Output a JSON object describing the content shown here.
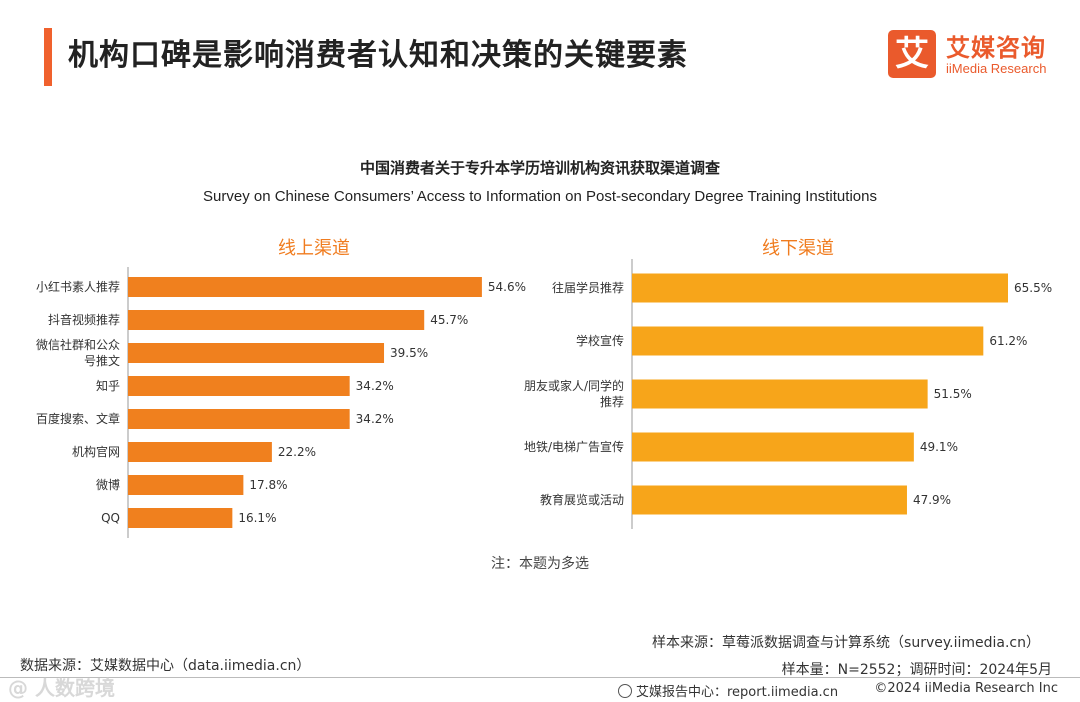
{
  "header": {
    "title": "机构口碑是影响消费者认知和决策的关键要素"
  },
  "logo": {
    "mark": "艾",
    "cn": "艾媒咨询",
    "en": "iiMedia Research"
  },
  "colors": {
    "accent": "#f0612d",
    "online_bar": "#f0801e",
    "offline_bar": "#f7a51a",
    "heading": "#f07c1f"
  },
  "chart_data": [
    {
      "type": "bar",
      "orientation": "horizontal",
      "title": "中国消费者关于专升本学历培训机构资讯获取渠道调查",
      "subtitle": "Survey on Chinese Consumers’ Access to Information on Post-secondary Degree Training Institutions",
      "panel": "线上渠道",
      "categories": [
        "小红书素人推荐",
        "抖音视频推荐",
        "微信社群和公众号推文",
        "知乎",
        "百度搜索、文章",
        "机构官网",
        "微博",
        "QQ"
      ],
      "category_lines": [
        [
          "小红书素人推荐"
        ],
        [
          "抖音视频推荐"
        ],
        [
          "微信社群和公众",
          "号推文"
        ],
        [
          "知乎"
        ],
        [
          "百度搜索、文章"
        ],
        [
          "机构官网"
        ],
        [
          "微博"
        ],
        [
          "QQ"
        ]
      ],
      "values": [
        54.6,
        45.7,
        39.5,
        34.2,
        34.2,
        22.2,
        17.8,
        16.1
      ],
      "value_labels": [
        "54.6%",
        "45.7%",
        "39.5%",
        "34.2%",
        "34.2%",
        "22.2%",
        "17.8%",
        "16.1%"
      ],
      "unit": "%"
    },
    {
      "type": "bar",
      "orientation": "horizontal",
      "panel": "线下渠道",
      "categories": [
        "往届学员推荐",
        "学校宣传",
        "朋友或家人/同学的推荐",
        "地铁/电梯广告宣传",
        "教育展览或活动"
      ],
      "category_lines": [
        [
          "往届学员推荐"
        ],
        [
          "学校宣传"
        ],
        [
          "朋友或家人/同学的",
          "推荐"
        ],
        [
          "地铁/电梯广告宣传"
        ],
        [
          "教育展览或活动"
        ]
      ],
      "values": [
        65.5,
        61.2,
        51.5,
        49.1,
        47.9
      ],
      "value_labels": [
        "65.5%",
        "61.2%",
        "51.5%",
        "49.1%",
        "47.9%"
      ],
      "unit": "%"
    }
  ],
  "panels": {
    "online": "线上渠道",
    "offline": "线下渠道"
  },
  "note": "注：本题为多选",
  "sources": {
    "sample_source": "样本来源：草莓派数据调查与计算系统（survey.iimedia.cn）",
    "data_source": "数据来源：艾媒数据中心（data.iimedia.cn）",
    "sample_meta": "样本量：N=2552；调研时间：2024年5月"
  },
  "footer": {
    "report": "艾媒报告中心：report.iimedia.cn",
    "copyright": "©2024  iiMedia Research  Inc",
    "watermark": "@ 人数跨境"
  }
}
